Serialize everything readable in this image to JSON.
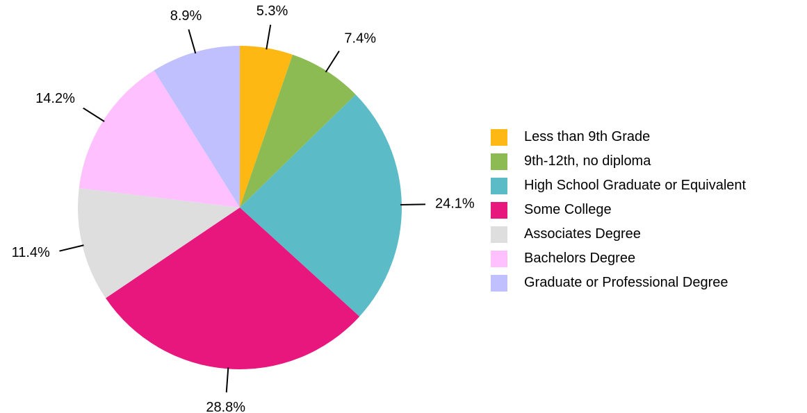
{
  "chart_data": {
    "type": "pie",
    "title": "",
    "start_angle": "12 o'clock",
    "direction": "clockwise",
    "legend_position": "right",
    "slices": [
      {
        "label": "Less than 9th Grade",
        "value": 5.3,
        "display": "5.3%",
        "color": "#FDB813"
      },
      {
        "label": "9th-12th, no diploma",
        "value": 7.4,
        "display": "7.4%",
        "color": "#8BBB52"
      },
      {
        "label": "High School Graduate or Equivalent",
        "value": 24.1,
        "display": "24.1%",
        "color": "#5BBCC8"
      },
      {
        "label": "Some College",
        "value": 28.8,
        "display": "28.8%",
        "color": "#E8177E"
      },
      {
        "label": "Associates Degree",
        "value": 11.4,
        "display": "11.4%",
        "color": "#DEDEDE"
      },
      {
        "label": "Bachelors Degree",
        "value": 14.2,
        "display": "14.2%",
        "color": "#FEC0FE"
      },
      {
        "label": "Graduate or Professional Degree",
        "value": 8.9,
        "display": "8.9%",
        "color": "#C0C0FE"
      }
    ]
  }
}
